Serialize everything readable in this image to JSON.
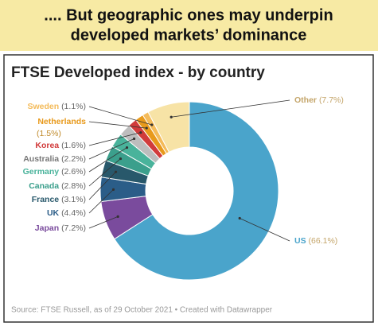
{
  "header": {
    "title_lines": [
      ".... But geographic ones may underpin",
      "developed markets’ dominance"
    ]
  },
  "chart_data": {
    "type": "donut",
    "title": "FTSE Developed index - by country",
    "categories": [
      "US",
      "Japan",
      "UK",
      "France",
      "Canada",
      "Germany",
      "Australia",
      "Korea",
      "Netherlands",
      "Sweden",
      "Other"
    ],
    "values": [
      66.1,
      7.2,
      4.4,
      3.1,
      2.8,
      2.6,
      2.2,
      1.6,
      1.5,
      1.1,
      7.7
    ],
    "value_labels": [
      "(66.1%)",
      "(7.2%)",
      "(4.4%)",
      "(3.1%)",
      "(2.8%)",
      "(2.6%)",
      "(2.2%)",
      "(1.6%)",
      "(1.5%)",
      "(1.1%)",
      "(7.7%)"
    ],
    "colors": [
      "#4aa4cb",
      "#7a4b9d",
      "#2b5d88",
      "#28586b",
      "#3b9f8c",
      "#49b39b",
      "#bdbdbd",
      "#d13b3b",
      "#e89a1c",
      "#f4bb5a",
      "#f7e3a6"
    ],
    "source": "Source: FTSE Russell, as of 29 October 2021 • Created with Datawrapper"
  }
}
